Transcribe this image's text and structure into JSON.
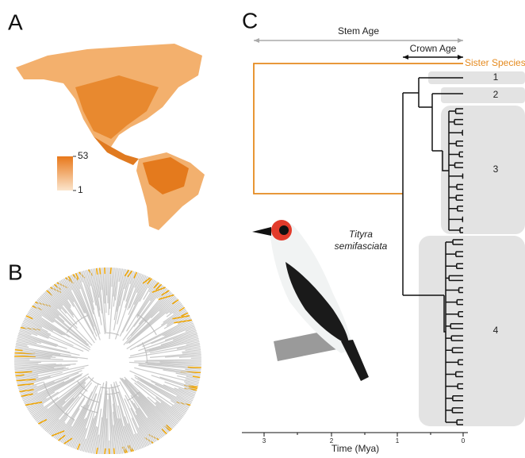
{
  "panels": [
    {
      "label": "A",
      "legend": {
        "max": "53",
        "min": "1"
      }
    },
    {
      "label": "B"
    },
    {
      "label": "C",
      "stem_age": "Stem Age",
      "crown_age": "Crown Age",
      "sister": "Sister Species",
      "clades": [
        "1",
        "2",
        "3",
        "4"
      ],
      "species": [
        "Tityra",
        "semifasciata"
      ],
      "axis": {
        "title": "Time (Mya)",
        "ticks": [
          "3",
          "2",
          "1",
          "0"
        ]
      }
    }
  ]
}
